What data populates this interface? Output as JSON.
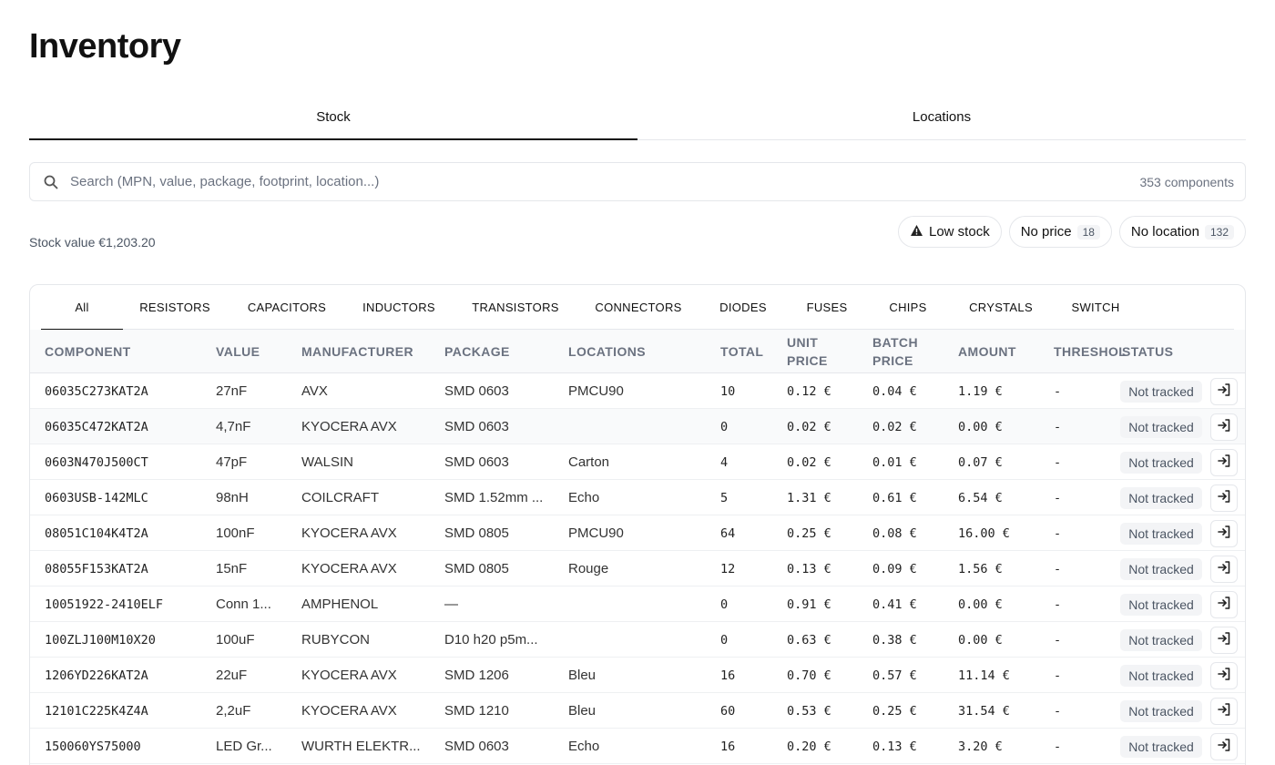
{
  "page": {
    "title": "Inventory"
  },
  "main_tabs": [
    {
      "label": "Stock"
    },
    {
      "label": "Locations"
    }
  ],
  "search": {
    "placeholder": "Search (MPN, value, package, footprint, location...)",
    "count": "353 components"
  },
  "summary": {
    "stock_value": "Stock value €1,203.20"
  },
  "filters": {
    "low_stock": {
      "label": "Low stock"
    },
    "no_price": {
      "label": "No price",
      "count": "18"
    },
    "no_location": {
      "label": "No location",
      "count": "132"
    }
  },
  "categories": [
    "All",
    "RESISTORS",
    "CAPACITORS",
    "INDUCTORS",
    "TRANSISTORS",
    "CONNECTORS",
    "DIODES",
    "FUSES",
    "CHIPS",
    "CRYSTALS",
    "SWITCH"
  ],
  "columns": {
    "component": "COMPONENT",
    "value": "VALUE",
    "manufacturer": "MANUFACTURER",
    "package": "PACKAGE",
    "locations": "LOCATIONS",
    "total": "TOTAL",
    "unit_price_1": "UNIT",
    "unit_price_2": "PRICE",
    "batch_price_1": "BATCH",
    "batch_price_2": "PRICE",
    "amount": "AMOUNT",
    "thresholds": "THRESHOLDS",
    "status": "STATUS"
  },
  "rows": [
    {
      "component": "06035C273KAT2A",
      "value": "27nF",
      "manufacturer": "AVX",
      "package": "SMD 0603",
      "location": "PMCU90",
      "total": "10",
      "unit_price": "0.12 €",
      "batch_price": "0.04 €",
      "amount": "1.19 €",
      "threshold": "-",
      "status": "Not tracked"
    },
    {
      "component": "06035C472KAT2A",
      "value": "4,7nF",
      "manufacturer": "KYOCERA AVX",
      "package": "SMD 0603",
      "location": "",
      "total": "0",
      "unit_price": "0.02 €",
      "batch_price": "0.02 €",
      "amount": "0.00 €",
      "threshold": "-",
      "status": "Not tracked"
    },
    {
      "component": "0603N470J500CT",
      "value": "47pF",
      "manufacturer": "WALSIN",
      "package": "SMD 0603",
      "location": "Carton",
      "total": "4",
      "unit_price": "0.02 €",
      "batch_price": "0.01 €",
      "amount": "0.07 €",
      "threshold": "-",
      "status": "Not tracked"
    },
    {
      "component": "0603USB-142MLC",
      "value": "98nH",
      "manufacturer": "COILCRAFT",
      "package": "SMD 1.52mm ...",
      "location": "Echo",
      "total": "5",
      "unit_price": "1.31 €",
      "batch_price": "0.61 €",
      "amount": "6.54 €",
      "threshold": "-",
      "status": "Not tracked"
    },
    {
      "component": "08051C104K4T2A",
      "value": "100nF",
      "manufacturer": "KYOCERA AVX",
      "package": "SMD 0805",
      "location": "PMCU90",
      "total": "64",
      "unit_price": "0.25 €",
      "batch_price": "0.08 €",
      "amount": "16.00 €",
      "threshold": "-",
      "status": "Not tracked"
    },
    {
      "component": "08055F153KAT2A",
      "value": "15nF",
      "manufacturer": "KYOCERA AVX",
      "package": "SMD 0805",
      "location": "Rouge",
      "total": "12",
      "unit_price": "0.13 €",
      "batch_price": "0.09 €",
      "amount": "1.56 €",
      "threshold": "-",
      "status": "Not tracked"
    },
    {
      "component": "10051922-2410ELF",
      "value": "Conn 1...",
      "manufacturer": "AMPHENOL",
      "package": "—",
      "location": "",
      "total": "0",
      "unit_price": "0.91 €",
      "batch_price": "0.41 €",
      "amount": "0.00 €",
      "threshold": "-",
      "status": "Not tracked"
    },
    {
      "component": "100ZLJ100M10X20",
      "value": "100uF",
      "manufacturer": "RUBYCON",
      "package": "D10 h20 p5m...",
      "location": "",
      "total": "0",
      "unit_price": "0.63 €",
      "batch_price": "0.38 €",
      "amount": "0.00 €",
      "threshold": "-",
      "status": "Not tracked"
    },
    {
      "component": "1206YD226KAT2A",
      "value": "22uF",
      "manufacturer": "KYOCERA AVX",
      "package": "SMD 1206",
      "location": "Bleu",
      "total": "16",
      "unit_price": "0.70 €",
      "batch_price": "0.57 €",
      "amount": "11.14 €",
      "threshold": "-",
      "status": "Not tracked"
    },
    {
      "component": "12101C225K4Z4A",
      "value": "2,2uF",
      "manufacturer": "KYOCERA AVX",
      "package": "SMD 1210",
      "location": "Bleu",
      "total": "60",
      "unit_price": "0.53 €",
      "batch_price": "0.25 €",
      "amount": "31.54 €",
      "threshold": "-",
      "status": "Not tracked"
    },
    {
      "component": "150060YS75000",
      "value": "LED Gr...",
      "manufacturer": "WURTH ELEKTR...",
      "package": "SMD 0603",
      "location": "Echo",
      "total": "16",
      "unit_price": "0.20 €",
      "batch_price": "0.13 €",
      "amount": "3.20 €",
      "threshold": "-",
      "status": "Not tracked"
    }
  ]
}
